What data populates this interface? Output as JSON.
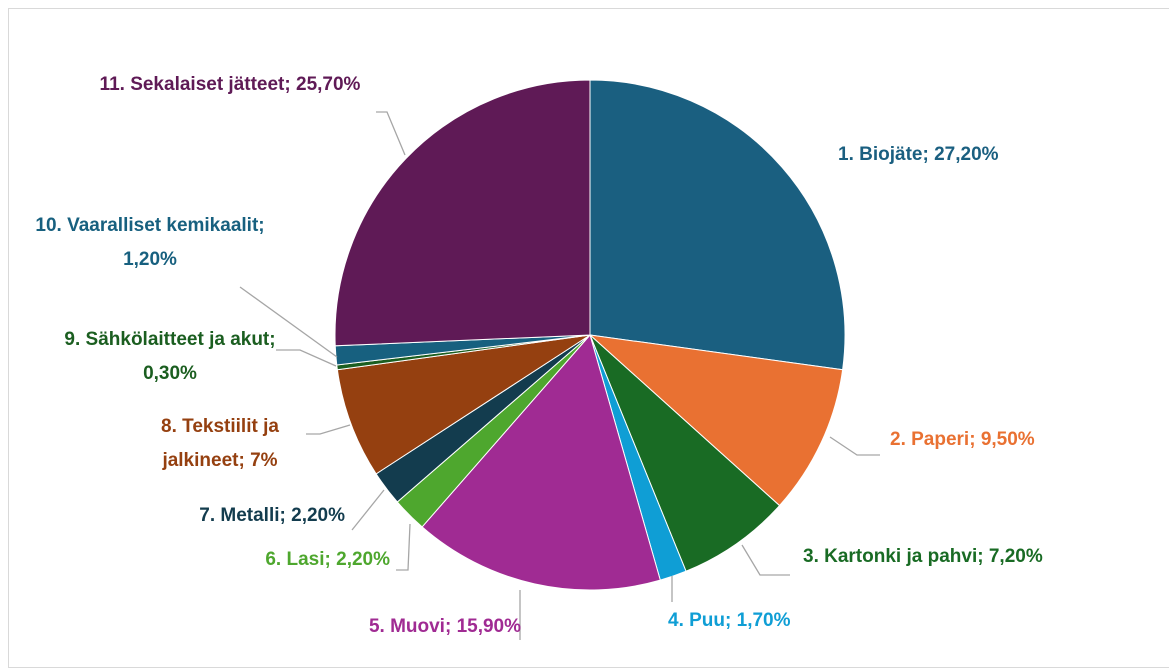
{
  "chart_data": {
    "type": "pie",
    "categories": [
      "1. Biojäte",
      "2. Paperi",
      "3. Kartonki ja pahvi",
      "4. Puu",
      "5. Muovi",
      "6. Lasi",
      "7. Metalli",
      "8. Tekstiilit ja jalkineet",
      "9. Sähkölaitteet ja akut",
      "10. Vaaralliset kemikaalit",
      "11. Sekalaiset jätteet"
    ],
    "values": [
      27.2,
      9.5,
      7.2,
      1.7,
      15.9,
      2.2,
      2.2,
      7,
      0.3,
      1.2,
      25.7
    ],
    "value_labels": [
      "27,20%",
      "9,50%",
      "7,20%",
      "1,70%",
      "15,90%",
      "2,20%",
      "2,20%",
      "7%",
      "0,30%",
      "1,20%",
      "25,70%"
    ],
    "colors": [
      "#1a5f80",
      "#e97132",
      "#196b24",
      "#0f9ed5",
      "#a02b93",
      "#4ea72e",
      "#133c4e",
      "#954010",
      "#1b5e20",
      "#17607f",
      "#5f1a56"
    ]
  }
}
